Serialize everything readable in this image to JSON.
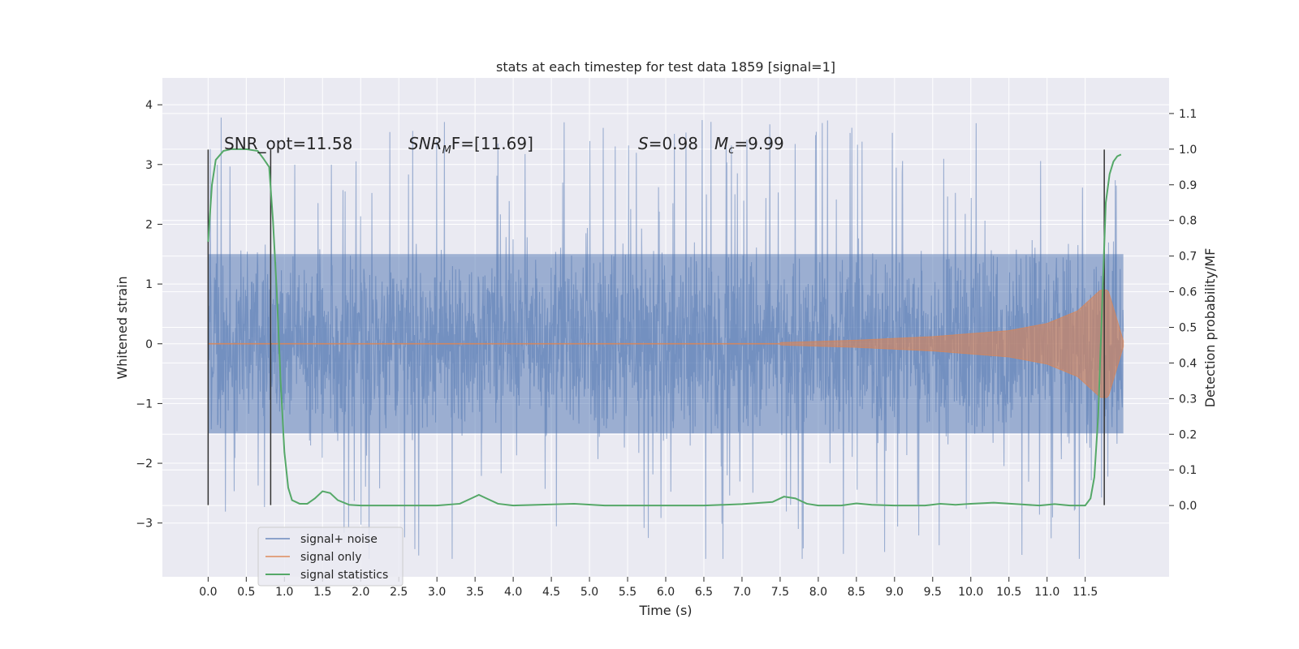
{
  "colors": {
    "background": "#eaeaf2",
    "grid": "#ffffff",
    "noise": "#4c72b0",
    "signal": "#dd8452",
    "stats": "#55a868",
    "marker": "#333333"
  },
  "chart_data": {
    "type": "line",
    "title": "stats at each timestep for test data 1859 [signal=1]",
    "xlabel": "Time (s)",
    "ylabel": "Whitened strain",
    "y2label": "Detection probability/MF",
    "xlim": [
      -0.6,
      12.6
    ],
    "ylim": [
      -3.9,
      4.45
    ],
    "y2lim": [
      -0.2,
      1.2
    ],
    "x_ticks": [
      0.0,
      0.5,
      1.0,
      1.5,
      2.0,
      2.5,
      3.0,
      3.5,
      4.0,
      4.5,
      5.0,
      5.5,
      6.0,
      6.5,
      7.0,
      7.5,
      8.0,
      8.5,
      9.0,
      9.5,
      10.0,
      10.5,
      11.0,
      11.5
    ],
    "x_tick_labels": [
      "0.0",
      "0.5",
      "1.0",
      "1.5",
      "2.0",
      "2.5",
      "3.0",
      "3.5",
      "4.0",
      "4.5",
      "5.0",
      "5.5",
      "6.0",
      "6.5",
      "7.0",
      "7.5",
      "8.0",
      "8.5",
      "9.0",
      "9.5",
      "10.0",
      "10.5",
      "11.0",
      "11.5"
    ],
    "y_ticks": [
      -3,
      -2,
      -1,
      0,
      1,
      2,
      3,
      4
    ],
    "y_tick_labels": [
      "−3",
      "−2",
      "−1",
      "0",
      "1",
      "2",
      "3",
      "4"
    ],
    "y2_ticks": [
      0.0,
      0.1,
      0.2,
      0.3,
      0.4,
      0.5,
      0.6,
      0.7,
      0.8,
      0.9,
      1.0,
      1.1
    ],
    "y2_tick_labels": [
      "0.0",
      "0.1",
      "0.2",
      "0.3",
      "0.4",
      "0.5",
      "0.6",
      "0.7",
      "0.8",
      "0.9",
      "1.0",
      "1.1"
    ],
    "grid": true,
    "legend_position": "lower-left",
    "legend": [
      "signal+ noise",
      "signal only",
      "signal statistics"
    ],
    "annotations": {
      "snr_opt": "SNR_opt=11.58",
      "snr_mf_main": "SNR",
      "snr_mf_sub": "M",
      "snr_mf_rest": "F=[11.69]",
      "s_label": "S",
      "s_value": "=0.98",
      "mc_label": "M",
      "mc_sub": "c",
      "mc_value": "=9.99"
    },
    "noise_series": {
      "name": "signal+ noise",
      "x_range": [
        0.0,
        12.0
      ],
      "core_band": [
        -1.5,
        1.5
      ],
      "peak_range": [
        -3.6,
        4.1
      ]
    },
    "signal_series": {
      "name": "signal only",
      "x_range": [
        0.0,
        12.0
      ],
      "envelope": [
        [
          7.5,
          0.02
        ],
        [
          8.5,
          0.06
        ],
        [
          9.5,
          0.12
        ],
        [
          10.5,
          0.22
        ],
        [
          11.0,
          0.34
        ],
        [
          11.4,
          0.55
        ],
        [
          11.7,
          0.9
        ],
        [
          11.8,
          0.9
        ],
        [
          12.0,
          0.05
        ]
      ]
    },
    "stats_series": {
      "name": "signal statistics",
      "points": [
        [
          0.0,
          0.74
        ],
        [
          0.05,
          0.9
        ],
        [
          0.1,
          0.97
        ],
        [
          0.2,
          0.995
        ],
        [
          0.3,
          1.0
        ],
        [
          0.5,
          1.0
        ],
        [
          0.65,
          0.995
        ],
        [
          0.72,
          0.975
        ],
        [
          0.8,
          0.95
        ],
        [
          0.85,
          0.8
        ],
        [
          0.9,
          0.6
        ],
        [
          0.95,
          0.35
        ],
        [
          1.0,
          0.15
        ],
        [
          1.05,
          0.05
        ],
        [
          1.1,
          0.015
        ],
        [
          1.2,
          0.005
        ],
        [
          1.3,
          0.005
        ],
        [
          1.4,
          0.02
        ],
        [
          1.5,
          0.04
        ],
        [
          1.6,
          0.035
        ],
        [
          1.7,
          0.015
        ],
        [
          1.85,
          0.002
        ],
        [
          2.0,
          0.0
        ],
        [
          3.0,
          0.0
        ],
        [
          3.3,
          0.005
        ],
        [
          3.45,
          0.02
        ],
        [
          3.55,
          0.03
        ],
        [
          3.65,
          0.02
        ],
        [
          3.8,
          0.005
        ],
        [
          4.0,
          0.0
        ],
        [
          4.8,
          0.005
        ],
        [
          5.2,
          0.0
        ],
        [
          6.5,
          0.0
        ],
        [
          7.0,
          0.004
        ],
        [
          7.4,
          0.01
        ],
        [
          7.55,
          0.025
        ],
        [
          7.7,
          0.02
        ],
        [
          7.85,
          0.005
        ],
        [
          8.0,
          0.0
        ],
        [
          8.3,
          0.0
        ],
        [
          8.5,
          0.006
        ],
        [
          8.7,
          0.002
        ],
        [
          9.0,
          0.0
        ],
        [
          9.4,
          0.0
        ],
        [
          9.6,
          0.005
        ],
        [
          9.8,
          0.002
        ],
        [
          10.0,
          0.005
        ],
        [
          10.3,
          0.008
        ],
        [
          10.6,
          0.004
        ],
        [
          10.9,
          0.0
        ],
        [
          11.1,
          0.004
        ],
        [
          11.3,
          0.0
        ],
        [
          11.5,
          0.0
        ],
        [
          11.57,
          0.02
        ],
        [
          11.62,
          0.08
        ],
        [
          11.67,
          0.25
        ],
        [
          11.72,
          0.55
        ],
        [
          11.77,
          0.85
        ],
        [
          11.82,
          0.93
        ],
        [
          11.87,
          0.965
        ],
        [
          11.92,
          0.98
        ],
        [
          11.97,
          0.985
        ]
      ]
    },
    "marker_lines": [
      {
        "x": 0.0,
        "y_range": [
          -2.7,
          3.25
        ]
      },
      {
        "x": 0.82,
        "y_range": [
          -2.7,
          3.25
        ]
      },
      {
        "x": 11.75,
        "y_range": [
          -2.7,
          3.25
        ]
      }
    ]
  }
}
